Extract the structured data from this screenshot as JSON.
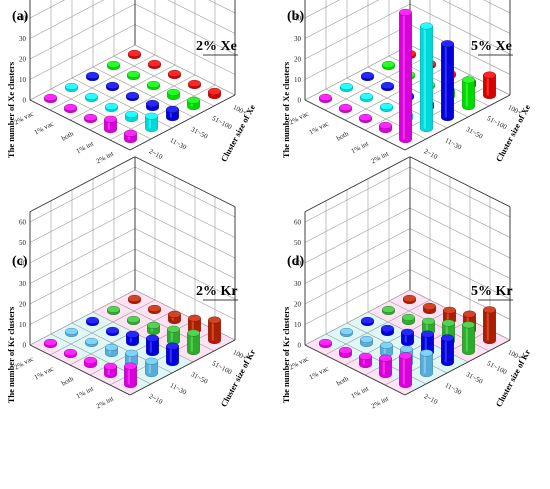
{
  "chart_data": [
    {
      "panel_label": "(a)",
      "title": "2% Xe",
      "type": "bar3d",
      "ylabel": "The number of Xe clusters",
      "zlabel": "Cluster size of Xe",
      "xcategories": [
        "2% int",
        "1% int",
        "both",
        "1% vac",
        "2% vac"
      ],
      "zcategories": [
        "2~10",
        "11~30",
        "31~50",
        "51~100",
        "100+"
      ],
      "yticks": [
        "0",
        "10",
        "20",
        "30",
        "40",
        "50",
        "60"
      ],
      "ylim": [
        0,
        65
      ],
      "values": [
        [
          3,
          6,
          4,
          3,
          2
        ],
        [
          5,
          2,
          2,
          2,
          1
        ],
        [
          1,
          1,
          1,
          1,
          1
        ],
        [
          1,
          1,
          1,
          1,
          1
        ],
        [
          1,
          1,
          1,
          1,
          1
        ]
      ],
      "colors": [
        "#ff00ff",
        "#00ffff",
        "#0000ff",
        "#00ff00",
        "#ff0000"
      ],
      "has_bg_glow": false
    },
    {
      "panel_label": "(b)",
      "title": "5% Xe",
      "type": "bar3d",
      "ylabel": "The number of Xe clusters",
      "zlabel": "Cluster size of Xe",
      "xcategories": [
        "2% int",
        "1% int",
        "both",
        "1% vac",
        "2% vac"
      ],
      "zcategories": [
        "2~10",
        "11~30",
        "31~50",
        "51~100",
        "100+"
      ],
      "yticks": [
        "0",
        "10",
        "20",
        "30",
        "40",
        "50",
        "60"
      ],
      "ylim": [
        0,
        65
      ],
      "values": [
        [
          62,
          50,
          36,
          13,
          10
        ],
        [
          2,
          2,
          2,
          3,
          2
        ],
        [
          1,
          1,
          1,
          1,
          1
        ],
        [
          1,
          1,
          1,
          1,
          1
        ],
        [
          1,
          1,
          1,
          1,
          1
        ]
      ],
      "colors": [
        "#ff00ff",
        "#00ffff",
        "#0000ff",
        "#00ff00",
        "#ff0000"
      ],
      "has_bg_glow": false
    },
    {
      "panel_label": "(c)",
      "title": "2% Kr",
      "type": "bar3d",
      "ylabel": "The number of Kr clusters",
      "zlabel": "Cluster size of Kr",
      "xcategories": [
        "2% int",
        "1% int",
        "both",
        "1% vac",
        "2% vac"
      ],
      "zcategories": [
        "2~10",
        "11~30",
        "31~50",
        "51~100",
        "100+"
      ],
      "yticks": [
        "0",
        "10",
        "20",
        "30",
        "40",
        "50",
        "60"
      ],
      "ylim": [
        0,
        65
      ],
      "values": [
        [
          9,
          6,
          8,
          9,
          10
        ],
        [
          4,
          5,
          7,
          6,
          6
        ],
        [
          2,
          3,
          4,
          3,
          3
        ],
        [
          1,
          1,
          1,
          1,
          1
        ],
        [
          1,
          1,
          1,
          1,
          1
        ]
      ],
      "colors": [
        "#ff00ff",
        "#66ccff",
        "#0000ff",
        "#33cc33",
        "#cc2200"
      ],
      "has_bg_glow": true
    },
    {
      "panel_label": "(d)",
      "title": "5% Kr",
      "type": "bar3d",
      "ylabel": "The number of Kr clusters",
      "zlabel": "Cluster size of Kr",
      "xcategories": [
        "2% int",
        "1% int",
        "both",
        "1% vac",
        "2% vac"
      ],
      "zcategories": [
        "2~10",
        "11~30",
        "31~50",
        "51~100",
        "100+"
      ],
      "yticks": [
        "0",
        "10",
        "20",
        "30",
        "40",
        "50",
        "60"
      ],
      "ylim": [
        0,
        65
      ],
      "values": [
        [
          14,
          10,
          12,
          13,
          15
        ],
        [
          8,
          7,
          9,
          9,
          8
        ],
        [
          4,
          4,
          5,
          5,
          5
        ],
        [
          2,
          2,
          2,
          2,
          2
        ],
        [
          1,
          1,
          1,
          1,
          1
        ]
      ],
      "colors": [
        "#ff00ff",
        "#66ccff",
        "#0000ff",
        "#33cc33",
        "#cc2200"
      ],
      "has_bg_glow": true
    }
  ]
}
